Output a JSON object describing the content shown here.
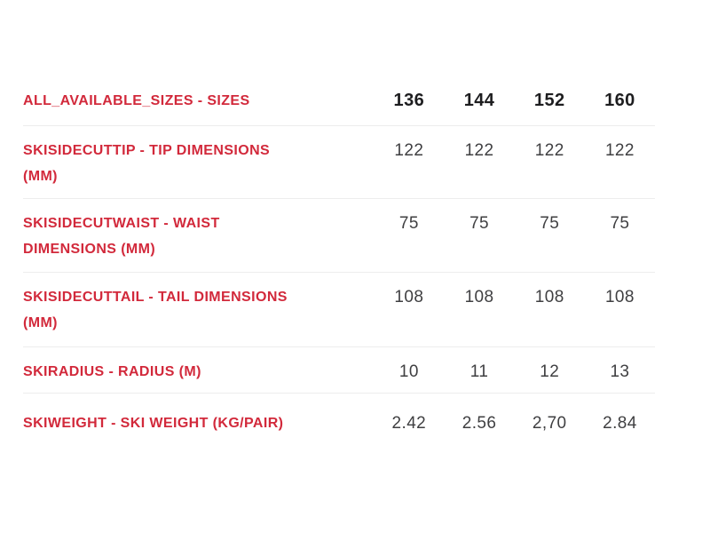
{
  "table": {
    "header": {
      "label": "ALL_AVAILABLE_SIZES - SIZES",
      "values": [
        "136",
        "144",
        "152",
        "160"
      ]
    },
    "rows": [
      {
        "label": "SKISIDECUTTIP - TIP DIMENSIONS (MM)",
        "lines": [
          "SKISIDECUTTIP - TIP DIMENSIONS",
          "(MM)"
        ],
        "values": [
          "122",
          "122",
          "122",
          "122"
        ]
      },
      {
        "label": "SKISIDECUTWAIST - WAIST DIMENSIONS (MM)",
        "lines": [
          "SKISIDECUTWAIST - WAIST",
          "DIMENSIONS (MM)"
        ],
        "values": [
          "75",
          "75",
          "75",
          "75"
        ]
      },
      {
        "label": "SKISIDECUTTAIL - TAIL DIMENSIONS (MM)",
        "lines": [
          "SKISIDECUTTAIL - TAIL DIMENSIONS",
          "(MM)"
        ],
        "values": [
          "108",
          "108",
          "108",
          "108"
        ]
      },
      {
        "label": "SKIRADIUS - RADIUS (M)",
        "lines": [
          "SKIRADIUS - RADIUS (M)"
        ],
        "values": [
          "10",
          "11",
          "12",
          "13"
        ]
      },
      {
        "label": "SKIWEIGHT - SKI WEIGHT (KG/PAIR)",
        "lines": [
          "SKIWEIGHT - SKI WEIGHT (KG/PAIR)"
        ],
        "values": [
          "2.42",
          "2.56",
          "2,70",
          "2.84"
        ]
      }
    ],
    "colors": {
      "label_red": "#d2293b",
      "header_value": "#1d1d1f",
      "value_gray": "#3f3f41",
      "divider": "#ededed",
      "background": "#ffffff"
    }
  }
}
